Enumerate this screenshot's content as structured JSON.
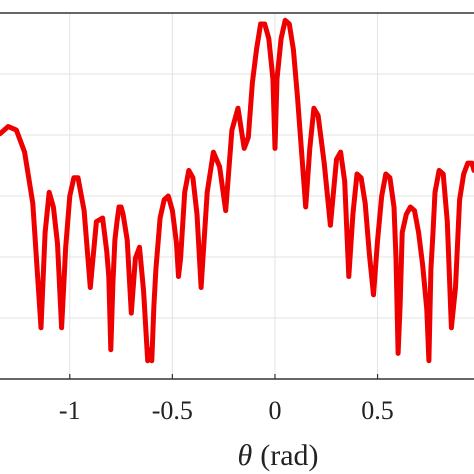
{
  "chart_data": {
    "type": "line",
    "title": "",
    "xlabel_symbol": "θ",
    "xlabel_unit": "(rad)",
    "ylabel": "",
    "xlim": [
      -1.34,
      0.97
    ],
    "ylim": [
      0,
      1
    ],
    "x_ticks": [
      -1,
      -0.5,
      0,
      0.5
    ],
    "x_tick_labels": [
      "-1",
      "-0.5",
      "0",
      "0.5"
    ],
    "grid": true,
    "legend": "none",
    "colors": {
      "line": "#ee0000",
      "grid": "#e3e3e3",
      "axes": "#333333"
    },
    "series": [
      {
        "values_note": "",
        "x": [
          -1.34,
          -1.3,
          -1.26,
          -1.22,
          -1.18,
          -1.14,
          -1.12,
          -1.1,
          -1.08,
          -1.06,
          -1.04,
          -1.02,
          -1.0,
          -0.98,
          -0.96,
          -0.93,
          -0.9,
          -0.87,
          -0.84,
          -0.82,
          -0.81,
          -0.8,
          -0.79,
          -0.78,
          -0.77,
          -0.76,
          -0.75,
          -0.74,
          -0.72,
          -0.7,
          -0.68,
          -0.66,
          -0.64,
          -0.62,
          -0.61,
          -0.6,
          -0.59,
          -0.58,
          -0.56,
          -0.54,
          -0.52,
          -0.5,
          -0.48,
          -0.47,
          -0.46,
          -0.44,
          -0.42,
          -0.4,
          -0.38,
          -0.36,
          -0.33,
          -0.3,
          -0.27,
          -0.24,
          -0.21,
          -0.18,
          -0.15,
          -0.13,
          -0.11,
          -0.09,
          -0.07,
          -0.05,
          -0.03,
          -0.01,
          0.0,
          0.01,
          0.03,
          0.05,
          0.07,
          0.09,
          0.11,
          0.13,
          0.15,
          0.17,
          0.19,
          0.21,
          0.24,
          0.27,
          0.3,
          0.32,
          0.34,
          0.36,
          0.38,
          0.4,
          0.42,
          0.44,
          0.46,
          0.48,
          0.5,
          0.52,
          0.54,
          0.56,
          0.58,
          0.59,
          0.6,
          0.61,
          0.62,
          0.64,
          0.66,
          0.68,
          0.7,
          0.72,
          0.74,
          0.75,
          0.76,
          0.77,
          0.78,
          0.8,
          0.82,
          0.84,
          0.86,
          0.88,
          0.9,
          0.92,
          0.94,
          0.96,
          0.97
        ],
        "y": [
          0.67,
          0.69,
          0.68,
          0.62,
          0.48,
          0.14,
          0.4,
          0.51,
          0.47,
          0.37,
          0.14,
          0.36,
          0.5,
          0.55,
          0.55,
          0.46,
          0.25,
          0.43,
          0.44,
          0.35,
          0.28,
          0.08,
          0.26,
          0.38,
          0.43,
          0.47,
          0.47,
          0.45,
          0.38,
          0.18,
          0.33,
          0.36,
          0.24,
          0.05,
          0.08,
          0.05,
          0.2,
          0.3,
          0.44,
          0.49,
          0.5,
          0.46,
          0.37,
          0.28,
          0.33,
          0.51,
          0.57,
          0.55,
          0.45,
          0.25,
          0.51,
          0.62,
          0.58,
          0.46,
          0.68,
          0.74,
          0.63,
          0.66,
          0.81,
          0.9,
          0.97,
          0.97,
          0.93,
          0.82,
          0.63,
          0.82,
          0.93,
          0.98,
          0.97,
          0.9,
          0.77,
          0.62,
          0.47,
          0.63,
          0.74,
          0.72,
          0.59,
          0.42,
          0.6,
          0.62,
          0.54,
          0.28,
          0.45,
          0.56,
          0.55,
          0.48,
          0.34,
          0.23,
          0.38,
          0.5,
          0.56,
          0.55,
          0.47,
          0.33,
          0.07,
          0.2,
          0.4,
          0.45,
          0.47,
          0.46,
          0.4,
          0.31,
          0.19,
          0.05,
          0.3,
          0.4,
          0.51,
          0.57,
          0.56,
          0.43,
          0.14,
          0.25,
          0.49,
          0.56,
          0.59,
          0.59,
          0.57
        ]
      }
    ]
  }
}
